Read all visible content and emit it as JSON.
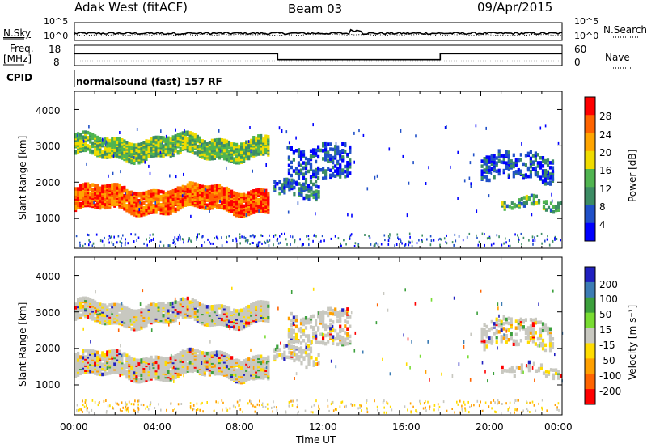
{
  "header": {
    "station": "Adak West (fitACF)",
    "beam": "Beam 03",
    "date": "09/Apr/2015"
  },
  "noise_panel": {
    "left_label": "N.Sky",
    "right_label": "N.Search",
    "ticks_left": [
      "10^5",
      "10^0"
    ],
    "ticks_right": [
      "10^5",
      "10^0"
    ]
  },
  "freq_panel": {
    "left_label_1": "Freq.",
    "left_label_2": "[MHz]",
    "right_label": "Nave",
    "ticks_left": [
      "18",
      "8"
    ],
    "ticks_right": [
      "60",
      "0"
    ]
  },
  "cpid": {
    "label": "CPID",
    "text": "normalsound (fast) 157 RF"
  },
  "power_panel": {
    "ylabel": "Slant Range [km]",
    "yticks": [
      "1000",
      "2000",
      "3000",
      "4000"
    ],
    "colorbar_label": "Power [dB]",
    "colorbar_ticks": [
      "4",
      "8",
      "12",
      "16",
      "20",
      "24",
      "28"
    ]
  },
  "velocity_panel": {
    "ylabel": "Slant Range [km]",
    "yticks": [
      "1000",
      "2000",
      "3000",
      "4000"
    ],
    "colorbar_label": "Velocity [m s⁻¹]",
    "colorbar_ticks": [
      "200",
      "100",
      "50",
      "15",
      "-15",
      "-50",
      "-100",
      "-200"
    ]
  },
  "xaxis": {
    "label": "Time UT",
    "ticks": [
      "00:00",
      "04:00",
      "08:00",
      "12:00",
      "16:00",
      "20:00",
      "00:00"
    ]
  },
  "chart_data": {
    "type": "heatmap",
    "x_range_hours": [
      0,
      24
    ],
    "y_range_km": [
      180,
      4500
    ],
    "power_colors": [
      "#0000ff",
      "#2050c8",
      "#3c8c64",
      "#50b450",
      "#f0dc00",
      "#ffa500",
      "#ff6400",
      "#ff0000"
    ],
    "velocity_colors": [
      "#2020c0",
      "#3c7cb4",
      "#3ca03c",
      "#78dc32",
      "#c8c8c0",
      "#ffdc00",
      "#ffa000",
      "#ff6400",
      "#ff0000"
    ],
    "nsky_level": 2.0,
    "nsearch_level": 1.6,
    "freq_steps": [
      {
        "from": 0,
        "to": 10,
        "mhz": 14
      },
      {
        "from": 10,
        "to": 18,
        "mhz": 10.5
      },
      {
        "from": 18,
        "to": 24,
        "mhz": 14
      }
    ],
    "nave_level": 6,
    "echo_bands": [
      {
        "from": 0,
        "to": 9.5,
        "range_lo": 1180,
        "range_hi": 1800,
        "power": 26,
        "vel": 0
      },
      {
        "from": 0,
        "to": 9.5,
        "range_lo": 2650,
        "range_hi": 3150,
        "power": 14,
        "vel": 0
      },
      {
        "from": 9.8,
        "to": 12.0,
        "range_lo": 1600,
        "range_hi": 2000,
        "power": 8,
        "vel": 0
      },
      {
        "from": 10.5,
        "to": 13.5,
        "range_lo": 2000,
        "range_hi": 2950,
        "power": 6,
        "vel": -30
      },
      {
        "from": 21.0,
        "to": 24.0,
        "range_lo": 1180,
        "range_hi": 1450,
        "power": 12,
        "vel": 0
      },
      {
        "from": 20.0,
        "to": 23.5,
        "range_lo": 2000,
        "range_hi": 2700,
        "power": 6,
        "vel": 0
      }
    ]
  }
}
